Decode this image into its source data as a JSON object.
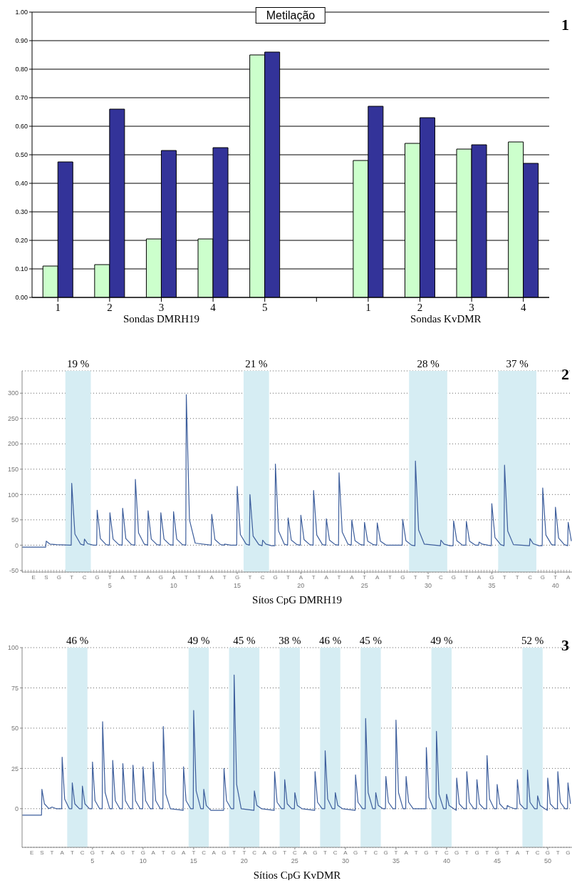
{
  "chart_data": [
    {
      "type": "bar",
      "title": "Metilação",
      "categories": [
        "1",
        "2",
        "3",
        "4",
        "5",
        null,
        "1",
        "2",
        "3",
        "4"
      ],
      "series": [
        {
          "color": "#ccffcc",
          "values": [
            0.11,
            0.115,
            0.205,
            0.205,
            0.85,
            null,
            0.48,
            0.54,
            0.52,
            0.545
          ]
        },
        {
          "color": "#333399",
          "values": [
            0.475,
            0.66,
            0.515,
            0.525,
            0.86,
            null,
            0.67,
            0.63,
            0.535,
            0.47
          ]
        }
      ],
      "ylim": [
        0,
        1
      ],
      "yticks": [
        {
          "value": 0,
          "label": "0.00"
        },
        {
          "value": 0.1,
          "label": "0.10"
        },
        {
          "value": 0.2,
          "label": "0.20"
        },
        {
          "value": 0.3,
          "label": "0.30"
        },
        {
          "value": 0.4,
          "label": "0.40"
        },
        {
          "value": 0.5,
          "label": "0.50"
        },
        {
          "value": 0.6,
          "label": "0.60"
        },
        {
          "value": 0.7,
          "label": "0.70"
        },
        {
          "value": 0.8,
          "label": "0.80"
        },
        {
          "value": 0.9,
          "label": "0.90"
        },
        {
          "value": 1,
          "label": "1.00"
        }
      ],
      "grid": "y",
      "annotations": [
        "Sondas DMRH19",
        "Sondas KvDMR",
        "1"
      ]
    },
    {
      "type": "line",
      "xlabel": "Sítos CpG DMRH19",
      "marker": "none",
      "grid": "y",
      "series": [
        {
          "color": "#3d5e9c",
          "x": [
            -1.9,
            -0.05,
            0,
            0.3,
            0.8,
            1.96,
            2,
            2.25,
            2.7,
            2.96,
            3,
            3.25,
            3.7,
            3.96,
            4,
            4.25,
            4.7,
            4.96,
            5,
            5.25,
            5.7,
            5.96,
            6,
            6.25,
            6.7,
            6.96,
            7,
            7.25,
            7.7,
            7.96,
            8,
            8.25,
            8.7,
            8.96,
            9,
            9.25,
            9.7,
            9.96,
            10,
            10.25,
            10.7,
            10.96,
            11,
            11.25,
            11.7,
            12.96,
            13,
            13.25,
            13.7,
            13.96,
            14,
            14.5,
            14.96,
            15,
            15.25,
            15.7,
            15.96,
            16,
            16.25,
            16.7,
            16.96,
            17,
            17.25,
            17.7,
            17.96,
            18,
            18.25,
            18.7,
            18.96,
            19,
            19.25,
            19.7,
            19.96,
            20,
            20.25,
            20.7,
            20.96,
            21,
            21.25,
            21.7,
            21.96,
            22,
            22.25,
            22.7,
            22.96,
            23,
            23.25,
            23.7,
            23.96,
            24,
            24.25,
            24.7,
            24.96,
            25,
            25.25,
            25.7,
            25.96,
            26,
            26.25,
            26.7,
            27.96,
            28,
            28.25,
            28.7,
            28.96,
            29,
            29.25,
            29.7,
            30.96,
            31,
            31.25,
            31.7,
            31.96,
            32,
            32.25,
            32.7,
            32.96,
            33,
            33.25,
            33.7,
            33.96,
            34,
            34.25,
            34.7,
            34.96,
            35,
            35.25,
            35.7,
            35.96,
            36,
            36.25,
            36.7,
            37.96,
            38,
            38.25,
            38.7,
            38.96,
            39,
            39.25,
            39.7,
            39.96,
            40,
            40.25,
            40.7,
            40.96,
            41,
            41.25
          ],
          "values": [
            -4,
            -4,
            8,
            2,
            1,
            0,
            122,
            22,
            2,
            0,
            12,
            3,
            0,
            0,
            69,
            13,
            1,
            0,
            64,
            12,
            1,
            0,
            73,
            13,
            1,
            0,
            130,
            24,
            2,
            0,
            68,
            12,
            1,
            0,
            64,
            12,
            1,
            0,
            66,
            12,
            1,
            0,
            297,
            50,
            4,
            0,
            61,
            11,
            1,
            0,
            2,
            0,
            0,
            116,
            21,
            2,
            0,
            100,
            18,
            1,
            -1,
            10,
            2,
            -1,
            -1,
            160,
            28,
            2,
            0,
            54,
            10,
            1,
            0,
            59,
            11,
            1,
            0,
            108,
            20,
            1,
            0,
            52,
            10,
            1,
            0,
            143,
            26,
            2,
            0,
            50,
            9,
            1,
            0,
            45,
            8,
            1,
            0,
            44,
            8,
            0,
            0,
            51,
            9,
            0,
            -1,
            166,
            30,
            2,
            -1,
            10,
            2,
            -1,
            -1,
            48,
            9,
            0,
            0,
            47,
            8,
            0,
            0,
            6,
            2,
            0,
            -1,
            82,
            15,
            1,
            -1,
            158,
            28,
            1,
            -1,
            13,
            3,
            -1,
            -1,
            113,
            20,
            1,
            0,
            75,
            14,
            1,
            -1,
            45,
            8
          ]
        }
      ],
      "xlim": [
        -1.9,
        41.3
      ],
      "xticks": [
        5,
        10,
        15,
        20,
        25,
        30,
        35,
        40
      ],
      "ylim": [
        -53,
        344
      ],
      "yticks": [
        -50,
        0,
        50,
        100,
        150,
        200,
        250,
        300
      ],
      "bands": [
        {
          "axis": "x",
          "from": 1.5,
          "to": 3.5,
          "label": "19 %",
          "color": "#d6edf3"
        },
        {
          "axis": "x",
          "from": 15.5,
          "to": 17.5,
          "label": "21 %",
          "color": "#d6edf3"
        },
        {
          "axis": "x",
          "from": 28.5,
          "to": 31.5,
          "label": "28 %",
          "color": "#d6edf3"
        },
        {
          "axis": "x",
          "from": 35.5,
          "to": 38.5,
          "label": "37 %",
          "color": "#d6edf3"
        }
      ],
      "annotations": [
        "2",
        "E",
        "S",
        "G",
        "T",
        "C",
        "G",
        "T",
        "A",
        "T",
        "A",
        "G",
        "A",
        "T",
        "T",
        "A",
        "T",
        "G",
        "T",
        "C",
        "G",
        "T",
        "A",
        "T",
        "A",
        "T",
        "A",
        "T",
        "A",
        "T",
        "G",
        "T",
        "T",
        "C",
        "G",
        "T",
        "A",
        "G",
        "T",
        "T",
        "C",
        "G",
        "T",
        "A"
      ]
    },
    {
      "type": "line",
      "xlabel": "Sítios CpG KvDMR",
      "marker": "none",
      "grid": "y",
      "series": [
        {
          "color": "#3d5e9c",
          "x": [
            -1.96,
            -0.04,
            0,
            0.25,
            0.7,
            1,
            1.4,
            1.96,
            2,
            2.25,
            2.7,
            2.96,
            3,
            3.25,
            3.7,
            3.96,
            4,
            4.25,
            4.7,
            4.96,
            5,
            5.25,
            5.7,
            5.96,
            6,
            6.25,
            6.7,
            6.96,
            7,
            7.25,
            7.7,
            7.96,
            8,
            8.25,
            8.7,
            8.96,
            9,
            9.25,
            9.7,
            9.96,
            10,
            10.25,
            10.7,
            10.96,
            11,
            11.25,
            11.7,
            11.96,
            12,
            12.25,
            12.7,
            13.96,
            14,
            14.25,
            14.7,
            14.96,
            15,
            15.25,
            15.7,
            15.96,
            16,
            16.25,
            16.7,
            17.96,
            18,
            18.25,
            18.7,
            18.96,
            19,
            19.25,
            19.7,
            20.96,
            21,
            21.25,
            21.7,
            22.96,
            23,
            23.25,
            23.7,
            23.96,
            24,
            24.25,
            24.7,
            24.96,
            25,
            25.25,
            25.7,
            26.96,
            27,
            27.25,
            27.7,
            27.96,
            28,
            28.25,
            28.7,
            28.96,
            29,
            29.25,
            29.7,
            30.96,
            31,
            31.25,
            31.7,
            31.96,
            32,
            32.25,
            32.7,
            32.96,
            33,
            33.25,
            33.7,
            33.96,
            34,
            34.25,
            34.7,
            34.96,
            35,
            35.25,
            35.7,
            35.96,
            36,
            36.25,
            36.7,
            37.96,
            38,
            38.25,
            38.7,
            38.96,
            39,
            39.25,
            39.7,
            39.96,
            40,
            40.25,
            40.7,
            40.96,
            41,
            41.25,
            41.7,
            41.96,
            42,
            42.25,
            42.7,
            42.96,
            43,
            43.25,
            43.7,
            43.96,
            44,
            44.25,
            44.7,
            44.96,
            45,
            45.25,
            45.7,
            45.96,
            46,
            46.25,
            46.7,
            46.96,
            47,
            47.25,
            47.7,
            47.96,
            48,
            48.25,
            48.7,
            48.96,
            49,
            49.25,
            49.7,
            49.96,
            50,
            50.25,
            50.7,
            50.96,
            51,
            51.25,
            51.7,
            51.96,
            52,
            52.25
          ],
          "values": [
            -4,
            -4,
            12,
            3,
            0,
            1,
            0,
            0,
            32,
            6,
            0,
            0,
            16,
            3,
            0,
            0,
            14,
            3,
            0,
            0,
            29,
            5,
            0,
            0,
            54,
            10,
            0,
            0,
            30,
            5,
            0,
            0,
            28,
            5,
            0,
            0,
            27,
            5,
            0,
            0,
            26,
            5,
            0,
            0,
            29,
            5,
            0,
            0,
            51,
            9,
            0,
            -1,
            26,
            5,
            0,
            0,
            61,
            11,
            0,
            0,
            12,
            2,
            -1,
            -1,
            25,
            5,
            0,
            0,
            83,
            15,
            0,
            -1,
            11,
            2,
            0,
            -1,
            23,
            4,
            0,
            0,
            18,
            3,
            0,
            0,
            10,
            2,
            0,
            -1,
            23,
            4,
            0,
            0,
            36,
            6,
            0,
            0,
            10,
            2,
            0,
            -1,
            21,
            4,
            0,
            0,
            56,
            10,
            0,
            0,
            10,
            2,
            0,
            0,
            20,
            4,
            0,
            0,
            55,
            10,
            0,
            0,
            20,
            4,
            0,
            0,
            38,
            7,
            0,
            0,
            48,
            9,
            0,
            0,
            9,
            2,
            0,
            -1,
            19,
            3,
            0,
            0,
            23,
            4,
            0,
            0,
            18,
            3,
            0,
            0,
            33,
            6,
            0,
            0,
            15,
            3,
            0,
            0,
            2,
            1,
            0,
            0,
            18,
            3,
            0,
            0,
            24,
            4,
            0,
            0,
            8,
            2,
            0,
            -1,
            19,
            3,
            0,
            0,
            23,
            4,
            0,
            0,
            16,
            3
          ]
        }
      ],
      "xlim": [
        -1.96,
        52.4
      ],
      "xticks": [
        5,
        10,
        15,
        20,
        25,
        30,
        35,
        40,
        45,
        50
      ],
      "ylim": [
        -24,
        100
      ],
      "yticks": [
        0,
        25,
        50,
        75,
        100
      ],
      "bands": [
        {
          "axis": "x",
          "from": 2.5,
          "to": 4.5,
          "label": "46 %",
          "color": "#d6edf3"
        },
        {
          "axis": "x",
          "from": 14.5,
          "to": 16.5,
          "label": "49 %",
          "color": "#d6edf3"
        },
        {
          "axis": "x",
          "from": 18.5,
          "to": 21.5,
          "label": "45 %",
          "color": "#d6edf3"
        },
        {
          "axis": "x",
          "from": 23.5,
          "to": 25.5,
          "label": "38 %",
          "color": "#d6edf3"
        },
        {
          "axis": "x",
          "from": 27.5,
          "to": 29.5,
          "label": "46 %",
          "color": "#d6edf3"
        },
        {
          "axis": "x",
          "from": 31.5,
          "to": 33.5,
          "label": "45 %",
          "color": "#d6edf3"
        },
        {
          "axis": "x",
          "from": 38.5,
          "to": 40.5,
          "label": "49 %",
          "color": "#d6edf3"
        },
        {
          "axis": "x",
          "from": 47.5,
          "to": 49.5,
          "label": "52 %",
          "color": "#d6edf3"
        }
      ],
      "annotations": [
        "3",
        "E",
        "S",
        "T",
        "A",
        "T",
        "C",
        "G",
        "T",
        "A",
        "G",
        "T",
        "G",
        "A",
        "T",
        "G",
        "A",
        "T",
        "C",
        "A",
        "G",
        "T",
        "T",
        "C",
        "A",
        "G",
        "T",
        "C",
        "A",
        "G",
        "T",
        "C",
        "A",
        "G",
        "T",
        "C",
        "G",
        "T",
        "A",
        "T",
        "G",
        "T",
        "C",
        "G",
        "T",
        "G",
        "T",
        "G",
        "T",
        "A",
        "T",
        "C",
        "G",
        "T",
        "G"
      ]
    }
  ]
}
